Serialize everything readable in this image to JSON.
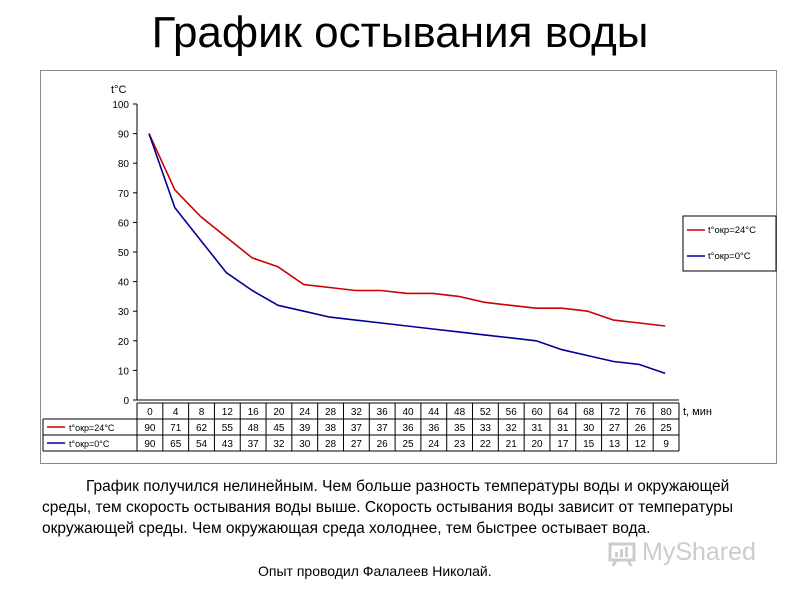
{
  "title": "График остывания воды",
  "description": "График получился нелинейным. Чем больше разность температуры воды и окружающей среды, тем скорость остывания воды выше. Скорость остывания воды зависит от температуры окружающей среды. Чем окружающая среда холоднее, тем быстрее остывает вода.",
  "author": "Опыт проводил Фалалеев Николай.",
  "watermark": "MyShared",
  "colors": {
    "series_24": "#cc0000",
    "series_0": "#000099",
    "grid": "#000000"
  },
  "chart_data": {
    "type": "line",
    "ylabel": "t°C",
    "xlabel": "t, мин",
    "ylim": [
      0,
      100
    ],
    "yticks": [
      0,
      10,
      20,
      30,
      40,
      50,
      60,
      70,
      80,
      90,
      100
    ],
    "categories": [
      "0",
      "4",
      "8",
      "12",
      "16",
      "20",
      "24",
      "28",
      "32",
      "36",
      "40",
      "44",
      "48",
      "52",
      "56",
      "60",
      "64",
      "68",
      "72",
      "76",
      "80"
    ],
    "series": [
      {
        "name": "t°окр=24°C",
        "color": "#cc0000",
        "values": [
          90,
          71,
          62,
          55,
          48,
          45,
          39,
          38,
          37,
          37,
          36,
          36,
          35,
          33,
          32,
          31,
          31,
          30,
          27,
          26,
          25
        ]
      },
      {
        "name": "t°окр=0°C",
        "color": "#000099",
        "values": [
          90,
          65,
          54,
          43,
          37,
          32,
          30,
          28,
          27,
          26,
          25,
          24,
          23,
          22,
          21,
          20,
          17,
          15,
          13,
          12,
          9
        ]
      }
    ],
    "legend": "right",
    "grid": false
  }
}
